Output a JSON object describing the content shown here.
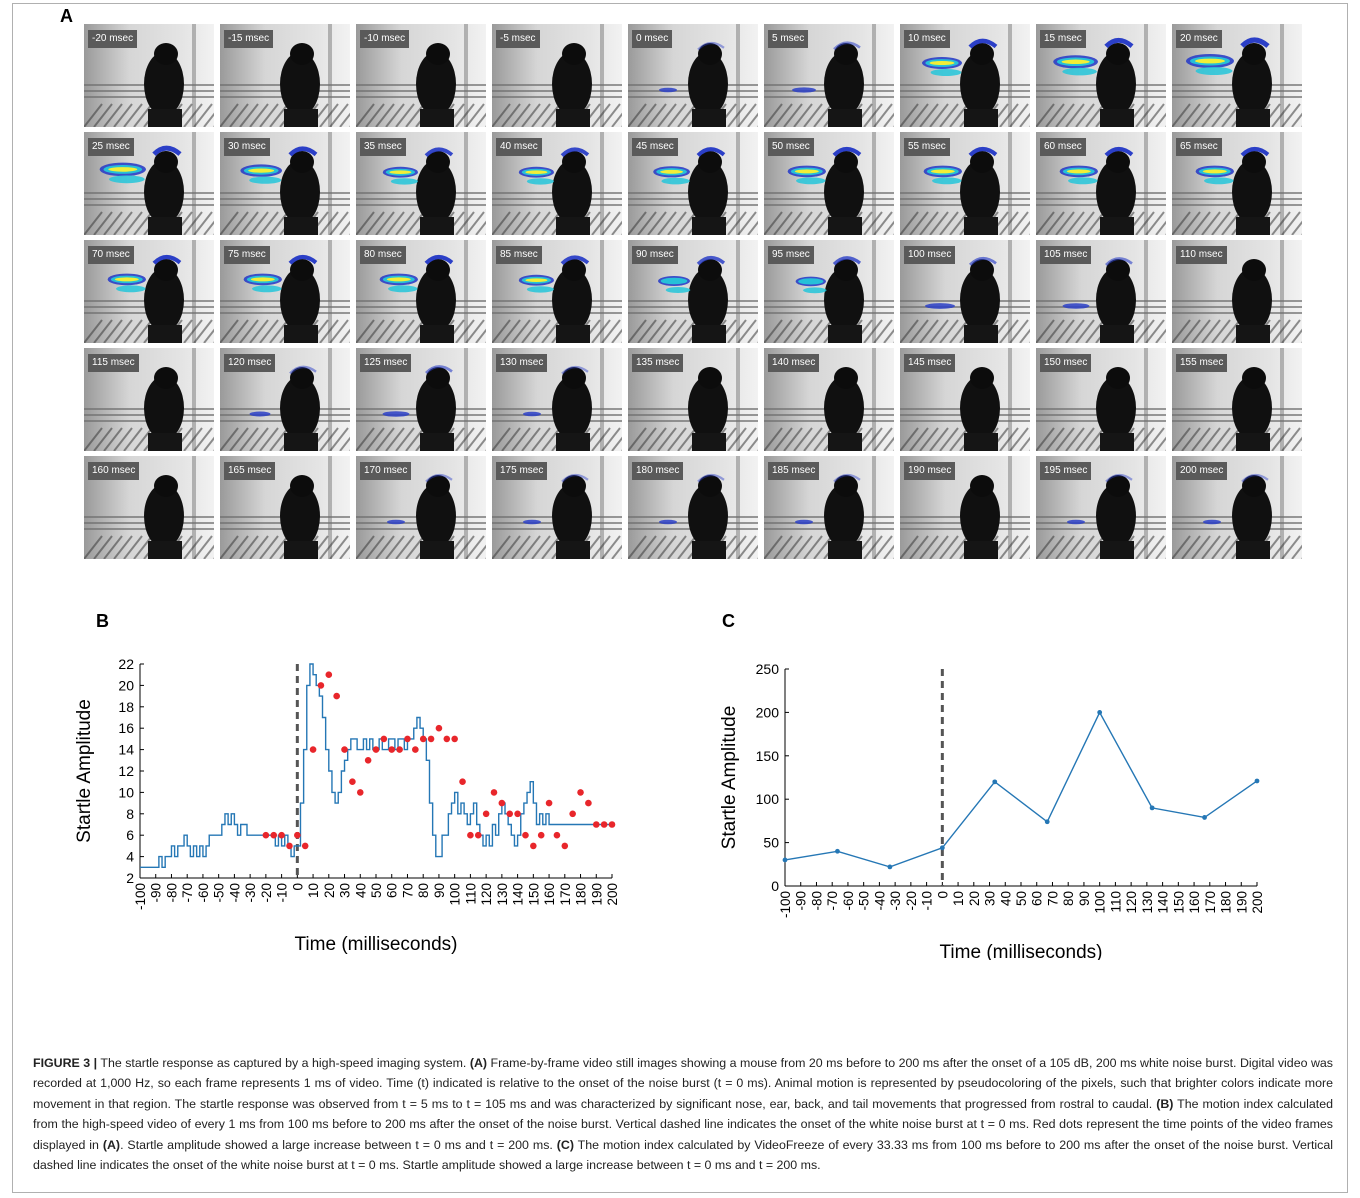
{
  "panels": {
    "a": "A",
    "b": "B",
    "c": "C"
  },
  "colors": {
    "series": "#2577b5",
    "markers": "#e8262b",
    "onset_line": "#555555",
    "heat_low": "#2b3fc7",
    "heat_mid": "#25c6d9",
    "heat_high": "#f2ee37"
  },
  "frames": [
    {
      "label": "-20 msec",
      "motion": 0.05
    },
    {
      "label": "-15 msec",
      "motion": 0.05
    },
    {
      "label": "-10 msec",
      "motion": 0.05
    },
    {
      "label": "-5 msec",
      "motion": 0.05
    },
    {
      "label": "0 msec",
      "motion": 0.1
    },
    {
      "label": "5 msec",
      "motion": 0.2
    },
    {
      "label": "10 msec",
      "motion": 0.75
    },
    {
      "label": "15 msec",
      "motion": 0.9
    },
    {
      "label": "20 msec",
      "motion": 1.0
    },
    {
      "label": "25 msec",
      "motion": 0.95
    },
    {
      "label": "30 msec",
      "motion": 0.8
    },
    {
      "label": "35 msec",
      "motion": 0.6
    },
    {
      "label": "40 msec",
      "motion": 0.6
    },
    {
      "label": "45 msec",
      "motion": 0.65
    },
    {
      "label": "50 msec",
      "motion": 0.7
    },
    {
      "label": "55 msec",
      "motion": 0.7
    },
    {
      "label": "60 msec",
      "motion": 0.7
    },
    {
      "label": "65 msec",
      "motion": 0.7
    },
    {
      "label": "70 msec",
      "motion": 0.7
    },
    {
      "label": "75 msec",
      "motion": 0.7
    },
    {
      "label": "80 msec",
      "motion": 0.7
    },
    {
      "label": "85 msec",
      "motion": 0.6
    },
    {
      "label": "90 msec",
      "motion": 0.5
    },
    {
      "label": "95 msec",
      "motion": 0.45
    },
    {
      "label": "100 msec",
      "motion": 0.3
    },
    {
      "label": "105 msec",
      "motion": 0.25
    },
    {
      "label": "110 msec",
      "motion": 0.05
    },
    {
      "label": "115 msec",
      "motion": 0.05
    },
    {
      "label": "120 msec",
      "motion": 0.15
    },
    {
      "label": "125 msec",
      "motion": 0.25
    },
    {
      "label": "130 msec",
      "motion": 0.1
    },
    {
      "label": "135 msec",
      "motion": 0.05
    },
    {
      "label": "140 msec",
      "motion": 0.05
    },
    {
      "label": "145 msec",
      "motion": 0.05
    },
    {
      "label": "150 msec",
      "motion": 0.05
    },
    {
      "label": "155 msec",
      "motion": 0.05
    },
    {
      "label": "160 msec",
      "motion": 0.05
    },
    {
      "label": "165 msec",
      "motion": 0.05
    },
    {
      "label": "170 msec",
      "motion": 0.1
    },
    {
      "label": "175 msec",
      "motion": 0.1
    },
    {
      "label": "180 msec",
      "motion": 0.1
    },
    {
      "label": "185 msec",
      "motion": 0.1
    },
    {
      "label": "190 msec",
      "motion": 0.05
    },
    {
      "label": "195 msec",
      "motion": 0.1
    },
    {
      "label": "200 msec",
      "motion": 0.1
    }
  ],
  "chart_data": [
    {
      "id": "B",
      "type": "line",
      "xlabel": "Time (milliseconds)",
      "ylabel": "Startle Amplitude",
      "xlim": [
        -100,
        200
      ],
      "ylim": [
        2,
        22
      ],
      "xticks": [
        -100,
        -90,
        -80,
        -70,
        -60,
        -50,
        -40,
        -30,
        -20,
        -10,
        0,
        10,
        20,
        30,
        40,
        50,
        60,
        70,
        80,
        90,
        100,
        110,
        120,
        130,
        140,
        150,
        160,
        170,
        180,
        190,
        200
      ],
      "yticks": [
        2,
        4,
        6,
        8,
        10,
        12,
        14,
        16,
        18,
        20,
        22
      ],
      "onset_x": 0,
      "series": [
        {
          "style": "step-line",
          "x": [
            -100,
            -88,
            -86,
            -84,
            -80,
            -78,
            -76,
            -74,
            -72,
            -70,
            -68,
            -66,
            -64,
            -62,
            -60,
            -58,
            -56,
            -54,
            -52,
            -50,
            -48,
            -46,
            -44,
            -42,
            -40,
            -38,
            -36,
            -34,
            -32,
            -30,
            -28,
            -26,
            -24,
            -22,
            -20,
            -18,
            -16,
            -14,
            -12,
            -10,
            -8,
            -6,
            -4,
            -2,
            0,
            2,
            4,
            6,
            8,
            10,
            12,
            14,
            16,
            18,
            20,
            22,
            24,
            26,
            28,
            30,
            32,
            34,
            36,
            38,
            40,
            42,
            44,
            46,
            48,
            50,
            52,
            54,
            56,
            58,
            60,
            62,
            64,
            66,
            68,
            70,
            72,
            74,
            76,
            78,
            80,
            82,
            84,
            86,
            88,
            90,
            92,
            94,
            96,
            98,
            100,
            102,
            104,
            106,
            108,
            110,
            112,
            114,
            116,
            118,
            120,
            122,
            124,
            126,
            128,
            130,
            132,
            134,
            136,
            138,
            140,
            142,
            144,
            146,
            148,
            150,
            152,
            154,
            156,
            158,
            160,
            162,
            164,
            166,
            168,
            170,
            172,
            174,
            176,
            178,
            180,
            182,
            184,
            186,
            188,
            190,
            192,
            194,
            196,
            198,
            200
          ],
          "y": [
            3,
            4,
            3,
            4,
            5,
            4,
            5,
            5,
            6,
            5,
            4,
            5,
            4,
            5,
            4,
            5,
            6,
            6,
            6,
            6,
            7,
            8,
            7,
            8,
            7,
            6,
            7,
            7,
            6,
            6,
            6,
            6,
            6,
            6,
            6,
            6,
            6,
            5,
            6,
            5,
            6,
            5,
            4,
            5,
            5,
            9,
            14,
            20,
            22,
            21,
            20,
            19,
            17,
            14,
            12,
            10,
            9,
            10,
            12,
            13,
            14,
            15,
            15,
            14,
            14,
            15,
            14,
            15,
            14,
            14,
            15,
            14,
            14,
            15,
            15,
            14,
            15,
            15,
            14,
            15,
            15,
            16,
            17,
            16,
            15,
            13,
            9,
            6,
            4,
            4,
            6,
            6,
            8,
            9,
            10,
            8,
            9,
            8,
            7,
            8,
            9,
            7,
            6,
            5,
            6,
            5,
            7,
            6,
            8,
            9,
            8,
            7,
            6,
            5,
            6,
            8,
            9,
            10,
            11,
            9,
            7,
            8,
            7,
            8,
            7,
            7,
            7,
            7,
            7,
            7,
            7,
            7,
            7,
            7,
            7,
            7,
            7,
            7,
            7,
            7,
            7,
            7,
            7,
            7,
            7
          ]
        },
        {
          "style": "markers",
          "x": [
            -20,
            -15,
            -10,
            -5,
            0,
            5,
            10,
            15,
            20,
            25,
            30,
            35,
            40,
            45,
            50,
            55,
            60,
            65,
            70,
            75,
            80,
            85,
            90,
            95,
            100,
            105,
            110,
            115,
            120,
            125,
            130,
            135,
            140,
            145,
            150,
            155,
            160,
            165,
            170,
            175,
            180,
            185,
            190,
            195,
            200
          ],
          "y": [
            6,
            6,
            6,
            5,
            6,
            5,
            14,
            20,
            21,
            19,
            14,
            11,
            10,
            13,
            14,
            15,
            14,
            14,
            15,
            14,
            15,
            15,
            16,
            15,
            15,
            11,
            6,
            6,
            8,
            10,
            9,
            8,
            8,
            6,
            5,
            6,
            9,
            6,
            5,
            8,
            10,
            9,
            7,
            7,
            7
          ]
        }
      ]
    },
    {
      "id": "C",
      "type": "line",
      "xlabel": "Time (milliseconds)",
      "ylabel": "Startle Amplitude",
      "xlim": [
        -100,
        200
      ],
      "ylim": [
        0,
        250
      ],
      "xticks": [
        -100,
        -90,
        -80,
        -70,
        -60,
        -50,
        -40,
        -30,
        -20,
        -10,
        0,
        10,
        20,
        30,
        40,
        50,
        60,
        70,
        80,
        90,
        100,
        110,
        120,
        130,
        140,
        150,
        160,
        170,
        180,
        190,
        200
      ],
      "yticks": [
        0,
        50,
        100,
        150,
        200,
        250
      ],
      "onset_x": 0,
      "series": [
        {
          "style": "line-markers",
          "x": [
            -100,
            -66.67,
            -33.33,
            0,
            33.33,
            66.67,
            100,
            133.33,
            166.67,
            200
          ],
          "y": [
            30,
            40,
            22,
            44,
            120,
            74,
            200,
            90,
            79,
            121
          ]
        }
      ]
    }
  ],
  "caption": {
    "label": "FIGURE 3 |",
    "t1": " The startle response as captured by a high-speed imaging system. ",
    "r1": "(A)",
    "t2": " Frame-by-frame video still images showing a mouse from 20 ms before to 200 ms after the onset of a 105 dB, 200 ms white noise burst. Digital video was recorded at 1,000 Hz, so each frame represents 1 ms of video. Time (t) indicated is relative to the onset of the noise burst (t = 0 ms). Animal motion is represented by pseudocoloring of the pixels, such that brighter colors indicate more movement in that region. The startle response was observed from t = 5 ms to t = 105 ms and was characterized by significant nose, ear, back, and tail movements that progressed from rostral to caudal. ",
    "r2": "(B)",
    "t3": " The motion index calculated from the high-speed video of every 1 ms from 100 ms before to 200 ms after the onset of the noise burst. Vertical dashed line indicates the onset of the white noise burst at t = 0 ms. Red dots represent the time points of the video frames displayed in ",
    "r3": "(A)",
    "t4": ". Startle amplitude showed a large increase between t = 0 ms and t = 200 ms. ",
    "r4": "(C)",
    "t5": " The motion index calculated by VideoFreeze of every 33.33 ms from 100 ms before to 200 ms after the onset of the noise burst. Vertical dashed line indicates the onset of the white noise burst at t = 0 ms. Startle amplitude showed a large increase between t = 0 ms and t = 200 ms."
  }
}
